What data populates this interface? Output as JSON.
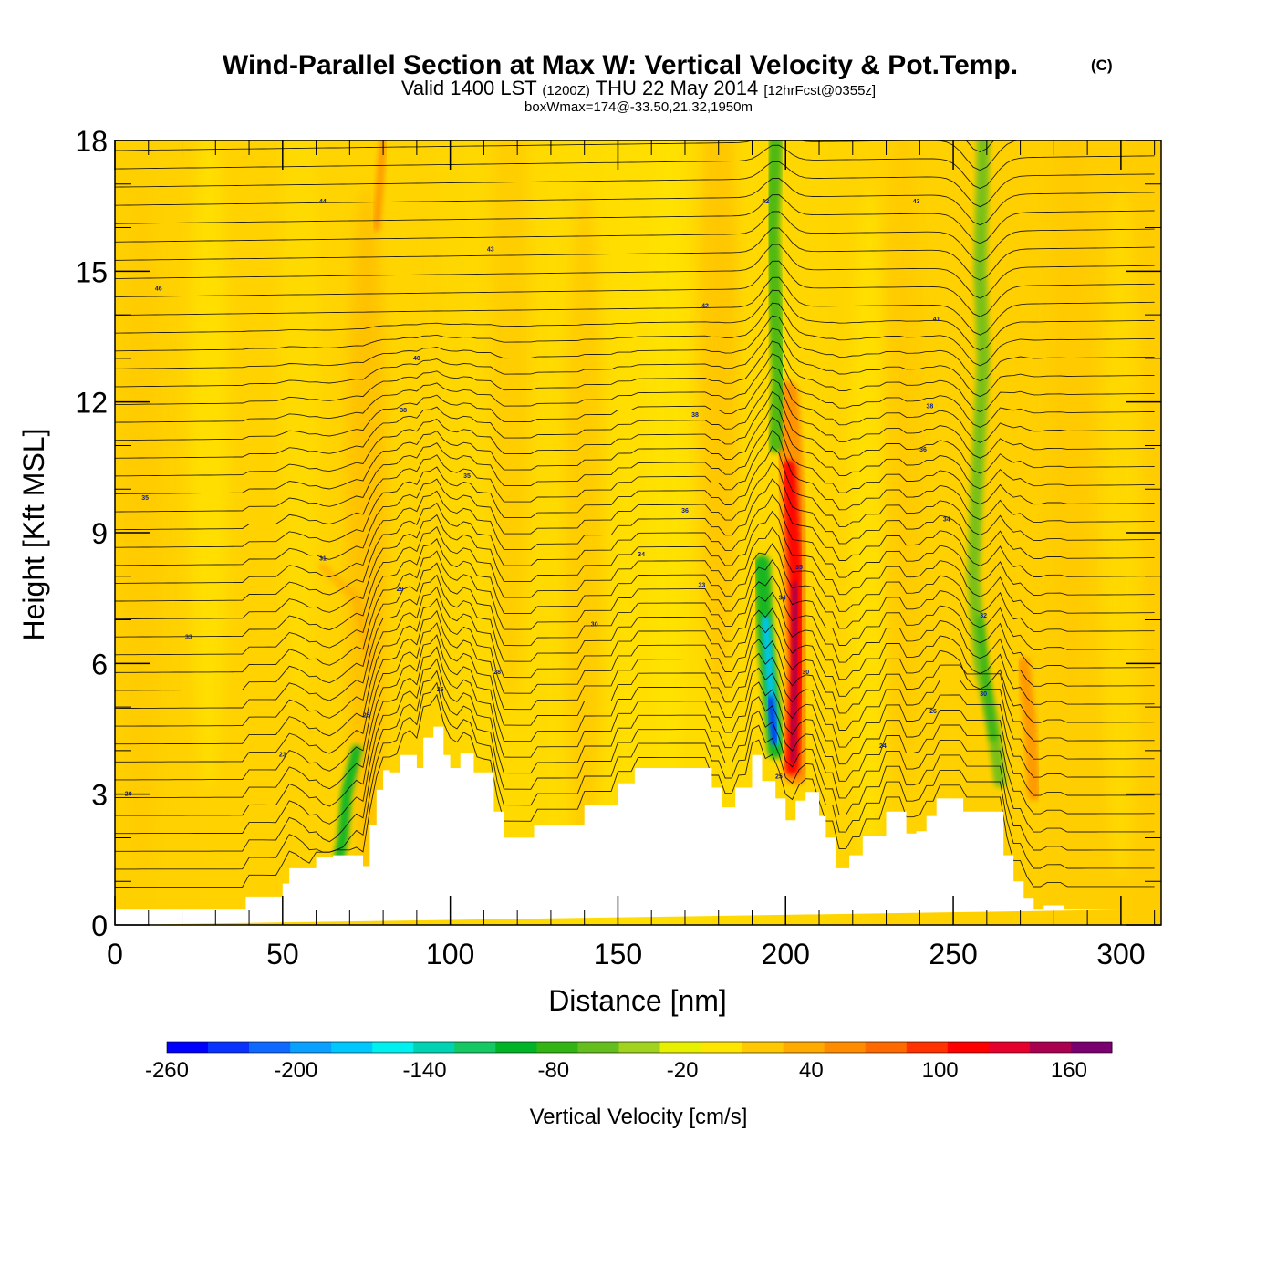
{
  "chart_data": {
    "type": "heatmap",
    "title": "Wind-Parallel Section at Max W: Vertical Velocity & Pot.Temp.",
    "title_mark": "(C)",
    "subtitle": {
      "valid": "Valid 1400 LST",
      "zulu": "(1200Z)",
      "date": "THU 22 May 2014",
      "forecast": "[12hrFcst@0355z]"
    },
    "subtitle2": "boxWmax=174@-33.50,21.32,1950m",
    "xlabel": "Distance [nm]",
    "ylabel": "Height [Kft MSL]",
    "xlim": [
      0,
      312
    ],
    "ylim": [
      0,
      18
    ],
    "x_ticks": [
      0,
      50,
      100,
      150,
      200,
      250,
      300
    ],
    "y_ticks": [
      0,
      3,
      6,
      9,
      12,
      15,
      18
    ],
    "colorbar": {
      "title": "Vertical Velocity [cm/s]",
      "range": [
        -260,
        180
      ],
      "tick_values": [
        -260,
        -200,
        -140,
        -80,
        -20,
        40,
        100,
        160
      ],
      "tick_labels": [
        "-260",
        "-200",
        "-140",
        "-80",
        "-20",
        "40",
        "100",
        "160"
      ],
      "colors": [
        "#0000ff",
        "#0a32ff",
        "#0f69ff",
        "#0aa0ff",
        "#00c8ff",
        "#00f0f0",
        "#00d2b4",
        "#14c864",
        "#00b428",
        "#32b414",
        "#64be1e",
        "#a0d21e",
        "#e6f000",
        "#ffe600",
        "#ffc800",
        "#ffaa00",
        "#ff8c00",
        "#ff6a00",
        "#ff3200",
        "#ff0000",
        "#e6002d",
        "#aa0050",
        "#7a0070"
      ]
    },
    "terrain_profile": {
      "x": [
        0,
        39,
        39,
        50,
        50,
        52,
        52,
        60,
        60,
        65,
        65,
        74,
        74,
        76,
        76,
        78,
        78,
        80,
        80,
        82,
        82,
        85,
        85,
        90,
        90,
        92,
        92,
        95,
        95,
        98,
        98,
        100,
        100,
        103,
        103,
        107,
        107,
        113,
        113,
        116,
        116,
        125,
        125,
        140,
        140,
        150,
        150,
        155,
        155,
        178,
        178,
        181,
        181,
        185,
        185,
        190,
        190,
        193,
        193,
        197,
        197,
        200,
        200,
        203,
        203,
        206,
        206,
        210,
        210,
        212,
        212,
        215,
        215,
        219,
        219,
        223,
        223,
        230,
        230,
        236,
        236,
        239,
        239,
        242,
        242,
        245,
        245,
        253,
        253,
        265,
        265,
        268,
        268,
        271,
        271,
        274,
        274,
        277,
        277,
        283,
        283,
        300,
        300,
        312
      ],
      "y": [
        0.35,
        0.35,
        0.65,
        0.65,
        0.95,
        0.95,
        1.3,
        1.3,
        1.55,
        1.55,
        1.6,
        1.6,
        1.35,
        1.35,
        2.3,
        2.3,
        3.1,
        3.1,
        3.55,
        3.55,
        3.5,
        3.5,
        3.9,
        3.9,
        3.6,
        3.6,
        4.3,
        4.3,
        4.55,
        4.55,
        3.9,
        3.9,
        3.6,
        3.6,
        3.95,
        3.95,
        3.5,
        3.5,
        2.6,
        2.6,
        2.0,
        2.0,
        2.3,
        2.3,
        2.75,
        2.75,
        3.25,
        3.25,
        3.6,
        3.6,
        3.15,
        3.15,
        2.7,
        2.7,
        3.15,
        3.15,
        3.9,
        3.9,
        3.3,
        3.3,
        2.9,
        2.9,
        2.4,
        2.4,
        2.85,
        2.85,
        3.05,
        3.05,
        2.5,
        2.5,
        2.0,
        2.0,
        1.3,
        1.3,
        1.6,
        1.6,
        2.05,
        2.05,
        2.6,
        2.6,
        2.1,
        2.1,
        2.15,
        2.15,
        2.5,
        2.5,
        2.9,
        2.9,
        2.6,
        2.6,
        1.6,
        1.6,
        1.0,
        1.0,
        0.6,
        0.6,
        0.35,
        0.35,
        0.45,
        0.45,
        0.35,
        0.35,
        0.35
      ]
    },
    "vertical_velocity_features": [
      {
        "x": 197,
        "y": 4.5,
        "w_cms": -260
      },
      {
        "x": 203,
        "y": 7.8,
        "w_cms": 140
      },
      {
        "x": 201,
        "y": 10.5,
        "w_cms": 100
      },
      {
        "x": 258,
        "y": 6.0,
        "w_cms": -80
      },
      {
        "x": 68,
        "y": 2.2,
        "w_cms": -90
      },
      {
        "x": 273,
        "y": 4.5,
        "w_cms": 50
      }
    ],
    "contour_labels": [
      {
        "x": 62,
        "y": 16.6,
        "text": "44"
      },
      {
        "x": 112,
        "y": 15.5,
        "text": "43"
      },
      {
        "x": 194,
        "y": 16.6,
        "text": "42"
      },
      {
        "x": 239,
        "y": 16.6,
        "text": "43"
      },
      {
        "x": 13,
        "y": 14.6,
        "text": "46"
      },
      {
        "x": 176,
        "y": 14.2,
        "text": "42"
      },
      {
        "x": 245,
        "y": 13.9,
        "text": "41"
      },
      {
        "x": 90,
        "y": 13.0,
        "text": "40"
      },
      {
        "x": 86,
        "y": 11.8,
        "text": "38"
      },
      {
        "x": 173,
        "y": 11.7,
        "text": "38"
      },
      {
        "x": 243,
        "y": 11.9,
        "text": "38"
      },
      {
        "x": 241,
        "y": 10.9,
        "text": "36"
      },
      {
        "x": 105,
        "y": 10.3,
        "text": "35"
      },
      {
        "x": 9,
        "y": 9.8,
        "text": "35"
      },
      {
        "x": 170,
        "y": 9.5,
        "text": "36"
      },
      {
        "x": 248,
        "y": 9.3,
        "text": "34"
      },
      {
        "x": 62,
        "y": 8.4,
        "text": "31"
      },
      {
        "x": 157,
        "y": 8.5,
        "text": "34"
      },
      {
        "x": 85,
        "y": 7.7,
        "text": "29"
      },
      {
        "x": 175,
        "y": 7.8,
        "text": "33"
      },
      {
        "x": 204,
        "y": 8.2,
        "text": "35"
      },
      {
        "x": 199,
        "y": 7.5,
        "text": "34"
      },
      {
        "x": 143,
        "y": 6.9,
        "text": "30"
      },
      {
        "x": 22,
        "y": 6.6,
        "text": "33"
      },
      {
        "x": 114,
        "y": 5.8,
        "text": "28"
      },
      {
        "x": 97,
        "y": 5.4,
        "text": "26"
      },
      {
        "x": 206,
        "y": 5.8,
        "text": "30"
      },
      {
        "x": 259,
        "y": 7.1,
        "text": "32"
      },
      {
        "x": 259,
        "y": 5.3,
        "text": "30"
      },
      {
        "x": 244,
        "y": 4.9,
        "text": "26"
      },
      {
        "x": 75,
        "y": 4.8,
        "text": "25"
      },
      {
        "x": 50,
        "y": 3.9,
        "text": "23"
      },
      {
        "x": 229,
        "y": 4.1,
        "text": "24"
      },
      {
        "x": 198,
        "y": 3.4,
        "text": "25"
      },
      {
        "x": 4,
        "y": 3.0,
        "text": "20"
      }
    ]
  }
}
